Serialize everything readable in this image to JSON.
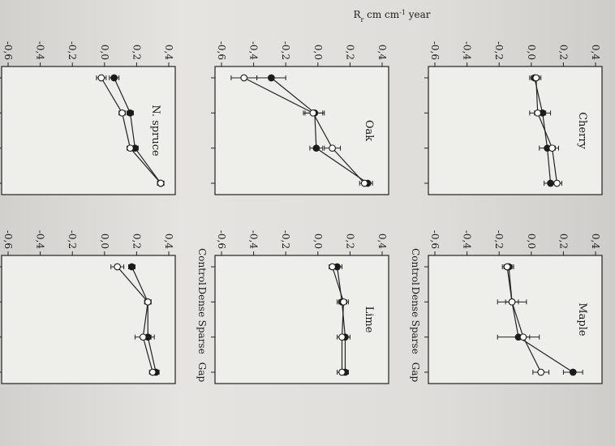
{
  "figure": {
    "shared_ylabel": "R",
    "shared_ylabel_sub": "r",
    "shared_ylabel_tail": " cm cm",
    "shared_ylabel_sup": "-1",
    "shared_ylabel_end": " year"
  },
  "chart_data": [
    {
      "type": "line",
      "title": "Cherry",
      "categories": [
        "Control",
        "Dense",
        "Sparse",
        "Gap"
      ],
      "ylim": [
        -0.6,
        0.4
      ],
      "yticks": [
        "0,4",
        "0,2",
        "0,0",
        "-0,2",
        "-0,4",
        "-0,6"
      ],
      "grid": false,
      "series": [
        {
          "marker": "filled",
          "values": [
            0.02,
            0.07,
            0.1,
            0.12
          ],
          "errors": [
            0.03,
            0.05,
            0.05,
            0.04
          ]
        },
        {
          "marker": "open",
          "values": [
            0.03,
            0.04,
            0.13,
            0.16
          ],
          "errors": [
            0.03,
            0.05,
            0.04,
            0.03
          ]
        }
      ]
    },
    {
      "type": "line",
      "title": "Oak",
      "categories": [
        "Control",
        "Dense",
        "Sparse",
        "Gap"
      ],
      "ylim": [
        -0.6,
        0.4
      ],
      "yticks": [
        "0,4",
        "0,2",
        "0,0",
        "-0,2",
        "-0,4",
        "-0,6"
      ],
      "grid": false,
      "series": [
        {
          "marker": "filled",
          "values": [
            -0.29,
            -0.02,
            -0.01,
            0.31
          ],
          "errors": [
            0.09,
            0.06,
            0.04,
            0.03
          ]
        },
        {
          "marker": "open",
          "values": [
            -0.46,
            -0.03,
            0.09,
            0.29
          ],
          "errors": [
            0.08,
            0.06,
            0.05,
            0.03
          ]
        }
      ]
    },
    {
      "type": "line",
      "title": "N. spruce",
      "categories": [
        "Control",
        "Dense",
        "Sparse",
        "Gap"
      ],
      "ylim": [
        -0.6,
        0.4
      ],
      "yticks": [
        "0,4",
        "0,2",
        "0,0",
        "-0,2",
        "-0,4",
        "-0,6"
      ],
      "grid": false,
      "series": [
        {
          "marker": "filled",
          "values": [
            0.06,
            0.16,
            0.19,
            0.35
          ],
          "errors": [
            0.03,
            0.02,
            0.02,
            0.02
          ]
        },
        {
          "marker": "open",
          "values": [
            -0.02,
            0.11,
            0.16,
            0.35
          ],
          "errors": [
            0.03,
            0.02,
            0.02,
            0.02
          ]
        }
      ]
    },
    {
      "type": "line",
      "title": "Maple",
      "categories": [
        "Control",
        "Dense",
        "Sparse",
        "Gap"
      ],
      "ylim": [
        -0.6,
        0.4
      ],
      "yticks": [
        "0,4",
        "0,2",
        "0,0",
        "-0,2",
        "-0,4",
        "-0,6"
      ],
      "grid": false,
      "series": [
        {
          "marker": "filled",
          "values": [
            -0.14,
            -0.12,
            -0.08,
            0.26
          ],
          "errors": [
            0.03,
            0.09,
            0.13,
            0.06
          ]
        },
        {
          "marker": "open",
          "values": [
            -0.15,
            -0.12,
            -0.05,
            0.06
          ],
          "errors": [
            0.03,
            0.04,
            0.04,
            0.05
          ]
        }
      ]
    },
    {
      "type": "line",
      "title": "Lime",
      "categories": [
        "Control",
        "Dense",
        "Sparse",
        "Gap"
      ],
      "ylim": [
        -0.6,
        0.4
      ],
      "yticks": [
        "0,4",
        "0,2",
        "0,0",
        "-0,2",
        "-0,4",
        "-0,6"
      ],
      "grid": false,
      "series": [
        {
          "marker": "filled",
          "values": [
            0.12,
            0.15,
            0.17,
            0.17
          ],
          "errors": [
            0.03,
            0.03,
            0.03,
            0.02
          ]
        },
        {
          "marker": "open",
          "values": [
            0.09,
            0.16,
            0.15,
            0.15
          ],
          "errors": [
            0.02,
            0.03,
            0.03,
            0.03
          ]
        }
      ]
    },
    {
      "type": "line",
      "title": "",
      "categories": [
        "Control",
        "Dense",
        "Sparse",
        "Gap"
      ],
      "ylim": [
        -0.6,
        0.4
      ],
      "yticks": [
        "0,4",
        "0,2",
        "0,0",
        "-0,2",
        "-0,4",
        "-0,6"
      ],
      "grid": false,
      "series": [
        {
          "marker": "filled",
          "values": [
            0.17,
            0.27,
            0.27,
            0.32
          ],
          "errors": [
            0.02,
            0.02,
            0.04,
            0.02
          ]
        },
        {
          "marker": "open",
          "values": [
            0.08,
            0.27,
            0.24,
            0.3
          ],
          "errors": [
            0.04,
            0.02,
            0.05,
            0.02
          ]
        }
      ]
    }
  ]
}
